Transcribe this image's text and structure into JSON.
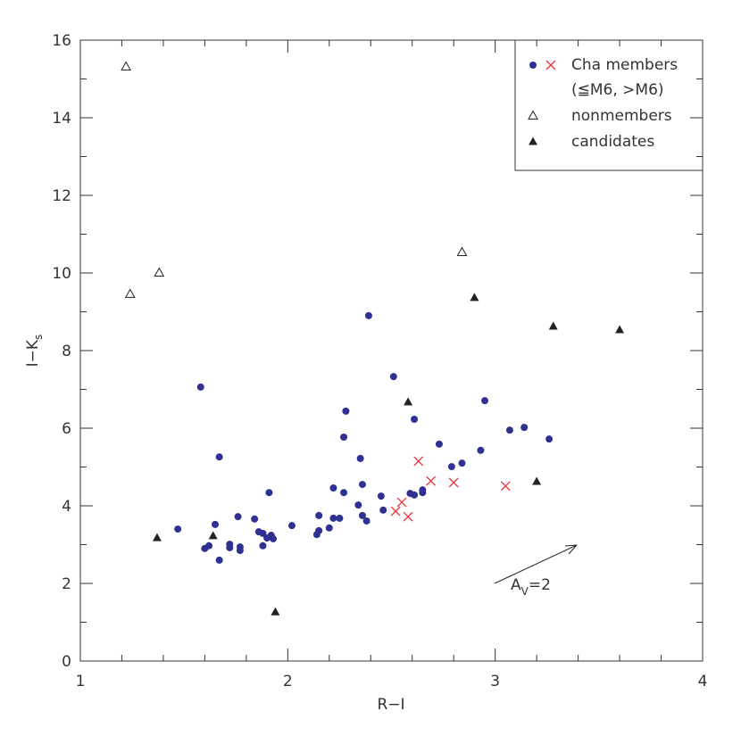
{
  "chart_data": {
    "type": "scatter",
    "x_label": "R−I",
    "y_label": "I−K",
    "y_label_sub": "s",
    "xlim": [
      1,
      4
    ],
    "ylim": [
      0,
      16
    ],
    "xticks": [
      1,
      2,
      3,
      4
    ],
    "yticks": [
      0,
      2,
      4,
      6,
      8,
      10,
      12,
      14,
      16
    ],
    "xminorticks": [
      1.2,
      1.4,
      1.6,
      1.8,
      2.2,
      2.4,
      2.6,
      2.8,
      3.2,
      3.4,
      3.6,
      3.8
    ],
    "yminorticks": [
      1,
      3,
      5,
      7,
      9,
      11,
      13,
      15
    ],
    "legend_position": "upper right",
    "legend_sublabel": "(≦M6, >M6)",
    "annotation": {
      "main": "A",
      "sub": "V",
      "rest": "=2"
    },
    "series": [
      {
        "name": "Cha members",
        "marker": "circle",
        "color": "#2e3192",
        "x": [
          1.47,
          1.6,
          1.62,
          1.65,
          1.67,
          1.67,
          1.58,
          1.72,
          1.72,
          1.76,
          1.77,
          1.77,
          1.84,
          1.86,
          1.88,
          1.88,
          1.9,
          1.91,
          1.92,
          1.93,
          2.02,
          2.14,
          2.15,
          2.15,
          2.2,
          2.22,
          2.22,
          2.25,
          2.27,
          2.27,
          2.28,
          2.34,
          2.35,
          2.36,
          2.36,
          2.38,
          2.39,
          2.45,
          2.46,
          2.51,
          2.59,
          2.61,
          2.61,
          2.65,
          2.65,
          2.73,
          2.79,
          2.84,
          2.93,
          2.95,
          3.07,
          3.14,
          3.26
        ],
        "y": [
          3.4,
          2.9,
          2.97,
          3.52,
          2.6,
          5.26,
          7.06,
          3.01,
          2.92,
          3.72,
          2.94,
          2.85,
          3.66,
          3.33,
          3.29,
          2.97,
          3.17,
          4.34,
          3.24,
          3.15,
          3.49,
          3.26,
          3.36,
          3.75,
          3.43,
          4.46,
          3.68,
          3.68,
          5.77,
          4.34,
          6.44,
          4.02,
          5.22,
          4.55,
          3.75,
          3.61,
          8.9,
          4.25,
          3.89,
          7.33,
          4.32,
          4.28,
          6.23,
          4.34,
          4.41,
          5.59,
          5.01,
          5.1,
          5.43,
          6.71,
          5.95,
          6.02,
          5.72
        ]
      },
      {
        "marker": "x",
        "color": "#e8303a",
        "x": [
          2.52,
          2.55,
          2.58,
          2.63,
          2.69,
          2.8,
          3.05
        ],
        "y": [
          3.86,
          4.09,
          3.72,
          5.15,
          4.64,
          4.6,
          4.51
        ]
      },
      {
        "name": "nonmembers",
        "marker": "open-triangle",
        "color": "#222222",
        "x": [
          1.22,
          1.24,
          1.38,
          2.84
        ],
        "y": [
          15.31,
          9.45,
          10.0,
          10.53
        ]
      },
      {
        "name": "candidates",
        "marker": "filled-triangle",
        "color": "#222222",
        "x": [
          1.37,
          1.64,
          1.94,
          2.58,
          2.9,
          3.2,
          3.28,
          3.6
        ],
        "y": [
          3.17,
          3.22,
          1.26,
          6.67,
          9.36,
          4.62,
          8.62,
          8.53
        ]
      }
    ]
  }
}
